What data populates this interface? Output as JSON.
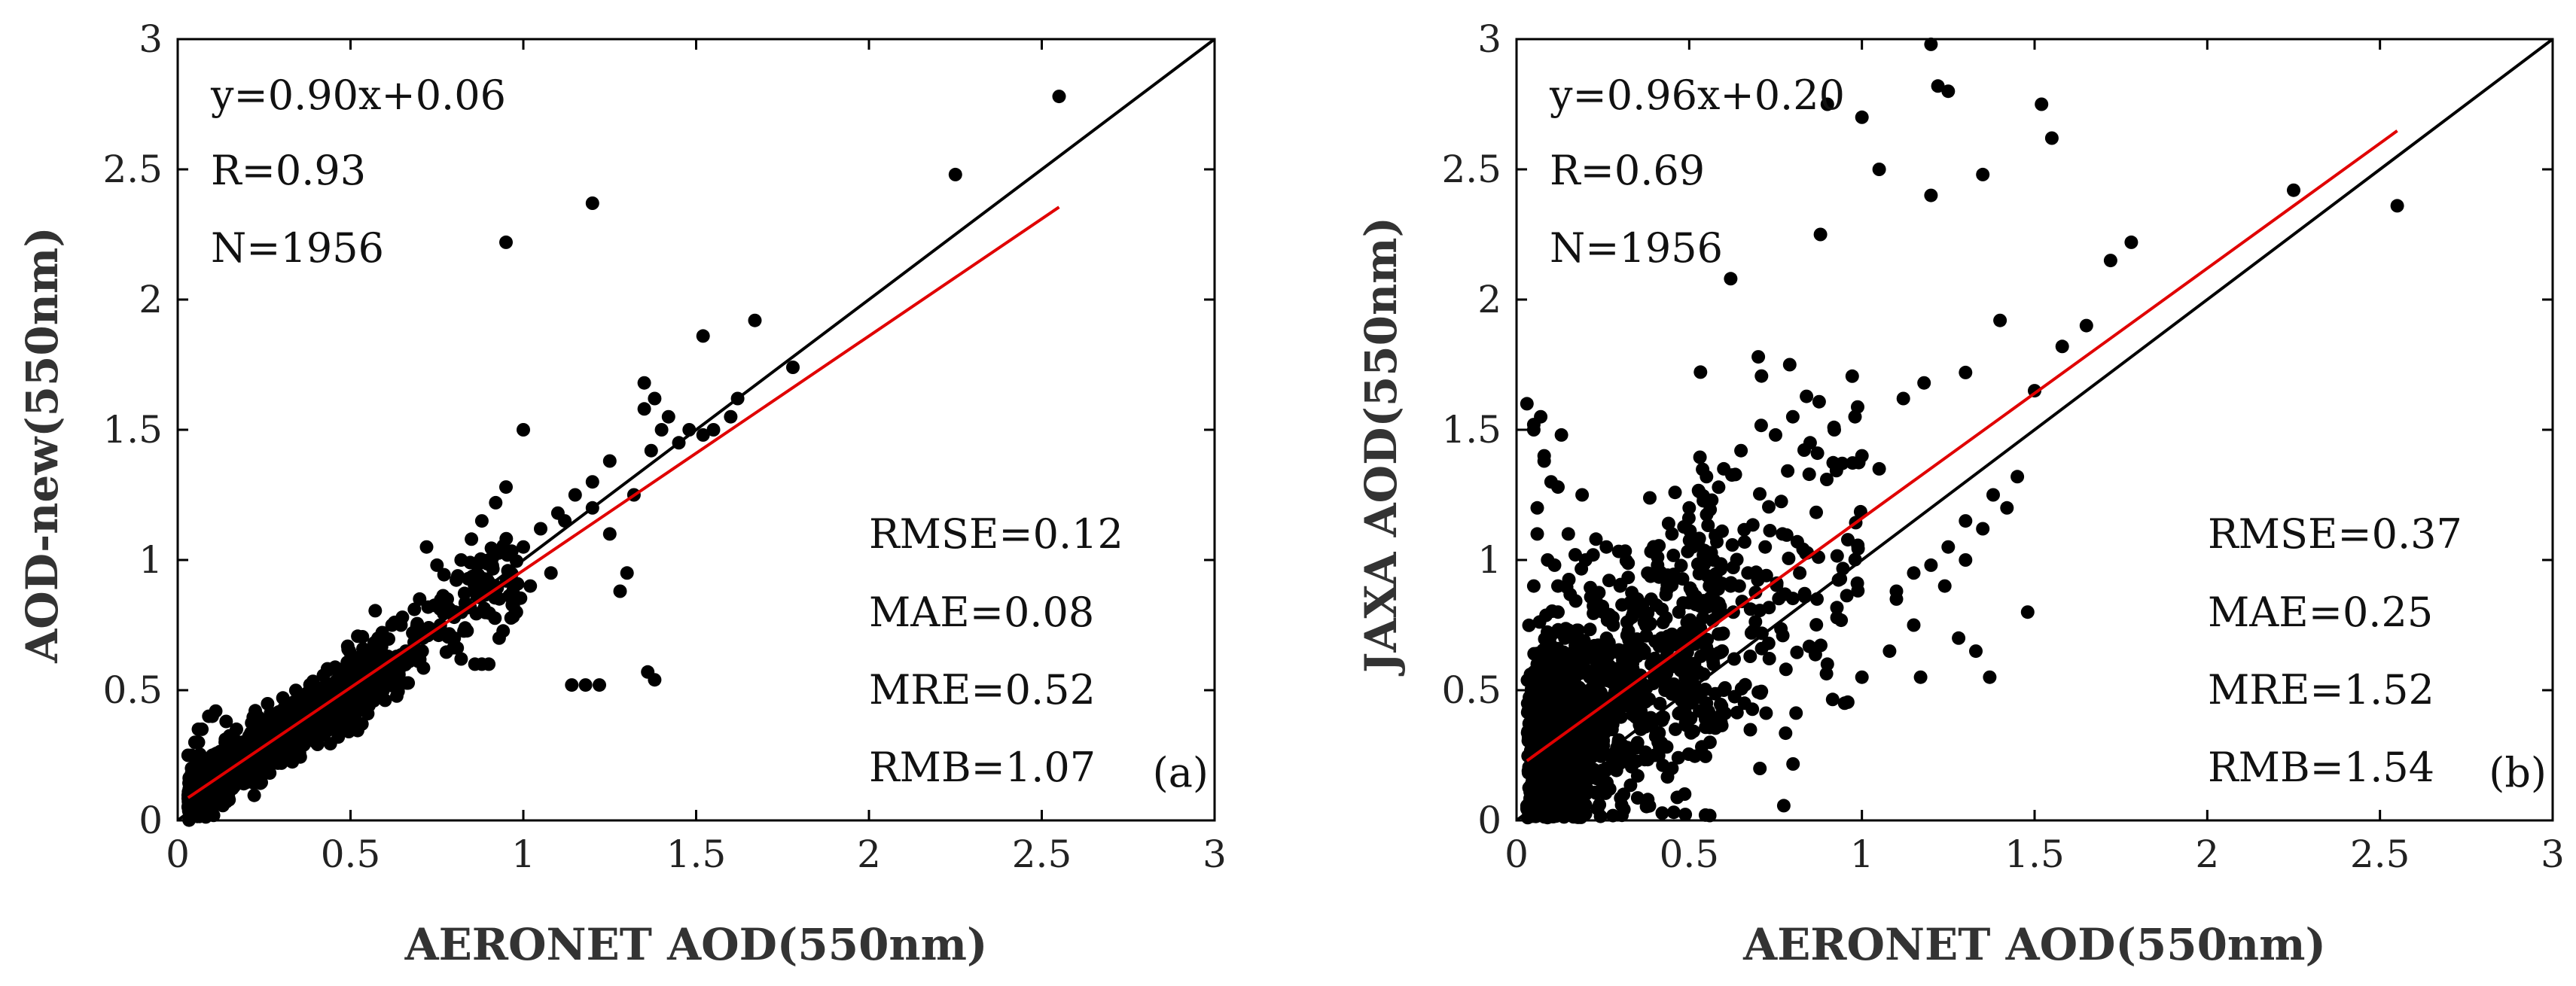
{
  "figure": {
    "panels": [
      "(a)",
      "(b)"
    ]
  },
  "chart_data": [
    {
      "type": "scatter",
      "panel_label": "(a)",
      "xlabel": "AERONET AOD(550nm)",
      "ylabel": "AOD-new(550nm)",
      "xlim": [
        0,
        3
      ],
      "ylim": [
        0,
        3
      ],
      "xticks": [
        "0",
        "0.5",
        "1",
        "1.5",
        "2",
        "2.5",
        "3"
      ],
      "yticks": [
        "0",
        "0.5",
        "1",
        "1.5",
        "2",
        "2.5",
        "3"
      ],
      "grid": false,
      "stats_top": [
        "y=0.90x+0.06",
        "R=0.93",
        "N=1956"
      ],
      "stats_bottom": [
        "RMSE=0.12",
        "MAE=0.08",
        "MRE=0.52",
        "RMB=1.07"
      ],
      "fit_line": {
        "slope": 0.9,
        "intercept": 0.06,
        "x_range": [
          0.03,
          2.55
        ],
        "color": "#e00000"
      },
      "one_to_one": {
        "x_range": [
          0,
          3
        ],
        "color": "#000000"
      },
      "point_color": "#000000",
      "points_x": [
        0.95,
        1.2,
        2.25,
        2.55,
        1.52,
        1.67,
        1.78,
        1.62,
        1.55,
        1.52,
        1.42,
        1.38,
        1.35,
        1.35,
        1.37,
        1.25,
        1.2,
        1.15,
        1.1,
        1.05,
        1.0,
        1.0,
        0.95,
        0.92,
        0.88,
        0.85,
        0.9,
        0.82,
        0.97,
        1.12,
        1.14,
        1.18,
        1.22,
        1.36,
        1.38,
        1.3,
        1.28,
        1.25,
        1.2,
        0.72,
        0.75,
        0.78,
        0.8,
        0.82,
        0.86,
        0.88,
        0.9,
        0.7,
        0.65,
        0.62,
        0.58,
        0.55,
        0.68,
        0.6,
        0.5,
        0.48,
        0.45,
        0.42,
        0.52,
        0.4,
        0.38,
        0.35,
        0.33,
        0.3,
        0.28,
        0.25,
        0.22,
        0.2,
        0.18,
        0.15,
        0.12,
        0.1,
        0.08,
        0.06,
        0.05,
        0.04,
        0.03,
        0.05,
        0.07,
        0.09,
        0.11,
        0.14,
        0.17,
        0.21,
        0.26,
        0.31,
        0.36,
        0.41,
        0.46,
        0.51,
        0.56,
        0.61,
        0.66,
        0.71,
        0.76,
        0.05,
        0.08,
        0.1,
        0.12,
        0.15,
        0.18,
        0.2,
        0.24,
        0.27,
        0.3,
        0.34,
        0.37,
        0.4,
        0.43,
        0.47,
        0.5,
        0.54,
        0.57,
        0.6,
        0.64,
        0.04,
        0.06,
        0.09,
        0.13,
        0.16,
        0.19,
        0.23,
        0.29,
        0.32,
        0.39,
        0.44,
        0.49,
        0.53,
        0.58,
        0.63,
        0.06,
        0.1,
        0.14,
        0.2,
        0.26,
        0.33,
        0.4,
        0.47,
        0.55,
        0.62,
        0.1,
        0.2,
        0.3,
        0.4,
        0.5,
        0.05,
        0.15,
        0.25,
        0.35,
        0.45,
        0.55,
        1.45,
        1.4,
        1.32,
        1.08,
        1.02,
        0.98,
        0.93,
        1.48,
        1.6
      ],
      "points_y": [
        2.22,
        2.37,
        2.48,
        2.78,
        1.86,
        1.92,
        1.74,
        1.62,
        1.5,
        1.48,
        1.55,
        1.62,
        1.68,
        1.58,
        1.42,
        1.38,
        1.3,
        1.25,
        1.18,
        1.12,
        1.05,
        1.5,
        1.28,
        1.22,
        1.15,
        1.08,
        1.0,
        1.0,
        0.88,
        1.15,
        0.52,
        0.52,
        0.52,
        0.57,
        0.54,
        0.95,
        0.88,
        1.1,
        1.2,
        1.05,
        0.98,
        0.85,
        0.78,
        0.62,
        0.6,
        0.6,
        0.6,
        0.85,
        0.78,
        0.75,
        0.7,
        0.65,
        0.72,
        0.58,
        0.62,
        0.55,
        0.5,
        0.45,
        0.52,
        0.42,
        0.4,
        0.38,
        0.35,
        0.32,
        0.3,
        0.28,
        0.25,
        0.22,
        0.2,
        0.18,
        0.16,
        0.15,
        0.14,
        0.12,
        0.15,
        0.2,
        0.25,
        0.3,
        0.35,
        0.4,
        0.42,
        0.38,
        0.35,
        0.3,
        0.33,
        0.36,
        0.42,
        0.48,
        0.5,
        0.55,
        0.58,
        0.62,
        0.65,
        0.7,
        0.75,
        0.08,
        0.1,
        0.12,
        0.08,
        0.12,
        0.15,
        0.2,
        0.18,
        0.22,
        0.25,
        0.28,
        0.3,
        0.33,
        0.36,
        0.4,
        0.45,
        0.48,
        0.5,
        0.53,
        0.56,
        0.25,
        0.3,
        0.22,
        0.18,
        0.28,
        0.3,
        0.26,
        0.22,
        0.3,
        0.35,
        0.38,
        0.42,
        0.46,
        0.5,
        0.55,
        0.35,
        0.4,
        0.1,
        0.15,
        0.2,
        0.25,
        0.3,
        0.37,
        0.45,
        0.52,
        0.2,
        0.25,
        0.22,
        0.3,
        0.38,
        0.18,
        0.22,
        0.3,
        0.28,
        0.4,
        0.45,
        1.45,
        1.5,
        1.25,
        0.95,
        0.9,
        0.8,
        0.7,
        1.5,
        1.55
      ]
    },
    {
      "type": "scatter",
      "panel_label": "(b)",
      "xlabel": "AERONET AOD(550nm)",
      "ylabel": "JAXA AOD(550nm)",
      "xlim": [
        0,
        3
      ],
      "ylim": [
        0,
        3
      ],
      "xticks": [
        "0",
        "0.5",
        "1",
        "1.5",
        "2",
        "2.5",
        "3"
      ],
      "yticks": [
        "0",
        "0.5",
        "1",
        "1.5",
        "2",
        "2.5",
        "3"
      ],
      "grid": false,
      "stats_top": [
        "y=0.96x+0.20",
        "R=0.69",
        "N=1956"
      ],
      "stats_bottom": [
        "RMSE=0.37",
        "MAE=0.25",
        "MRE=1.52",
        "RMB=1.54"
      ],
      "fit_line": {
        "slope": 0.96,
        "intercept": 0.2,
        "x_range": [
          0.03,
          2.55
        ],
        "color": "#e00000"
      },
      "one_to_one": {
        "x_range": [
          0,
          3
        ],
        "color": "#000000"
      },
      "point_color": "#000000",
      "points_x": [
        1.2,
        1.22,
        1.25,
        1.52,
        1.55,
        0.9,
        1.0,
        1.05,
        1.2,
        0.88,
        1.35,
        1.5,
        2.25,
        2.55,
        1.65,
        1.72,
        1.78,
        1.58,
        1.4,
        1.3,
        1.18,
        1.12,
        0.98,
        0.92,
        0.85,
        0.8,
        0.75,
        0.65,
        0.6,
        0.55,
        0.62,
        0.7,
        1.0,
        1.05,
        1.1,
        1.15,
        1.28,
        1.33,
        1.37,
        1.3,
        1.24,
        1.17,
        1.2,
        1.25,
        1.3,
        1.38,
        0.45,
        0.5,
        0.4,
        0.35,
        0.3,
        0.25,
        0.2,
        0.15,
        0.1,
        0.08,
        0.05,
        0.06,
        0.09,
        0.12,
        0.14,
        0.18,
        0.22,
        0.27,
        0.32,
        0.37,
        0.42,
        0.47,
        0.52,
        0.57,
        0.62,
        0.67,
        0.72,
        0.77,
        0.82,
        0.87,
        0.05,
        0.08,
        0.1,
        0.13,
        0.16,
        0.19,
        0.23,
        0.26,
        0.29,
        0.33,
        0.36,
        0.4,
        0.44,
        0.48,
        0.51,
        0.55,
        0.58,
        0.63,
        0.68,
        0.73,
        0.78,
        0.04,
        0.07,
        0.11,
        0.15,
        0.2,
        0.25,
        0.3,
        0.35,
        0.41,
        0.46,
        0.53,
        0.6,
        0.04,
        0.06,
        0.09,
        0.12,
        0.17,
        0.21,
        0.28,
        0.34,
        0.39,
        0.43,
        0.49,
        0.56,
        0.66,
        0.06,
        0.1,
        0.14,
        0.18,
        0.24,
        0.31,
        0.38,
        0.45,
        0.05,
        0.11,
        0.17,
        0.23,
        0.29,
        0.36,
        0.07,
        0.13,
        0.19,
        0.26,
        0.9,
        0.95,
        1.0,
        1.08,
        1.1,
        1.15,
        1.45,
        1.42,
        1.48,
        1.35,
        0.03,
        0.05,
        0.08,
        0.12,
        0.06,
        0.1
      ],
      "points_y": [
        2.98,
        2.82,
        2.8,
        2.75,
        2.62,
        2.75,
        2.7,
        2.5,
        2.4,
        2.25,
        2.48,
        1.65,
        2.42,
        2.36,
        1.9,
        2.15,
        2.22,
        1.82,
        1.92,
        1.72,
        1.68,
        1.62,
        1.55,
        1.5,
        1.45,
        1.55,
        1.48,
        1.42,
        1.35,
        1.32,
        2.08,
        1.78,
        1.4,
        1.35,
        0.85,
        0.75,
        0.7,
        0.65,
        0.55,
        1.0,
        0.9,
        0.55,
        0.98,
        1.05,
        1.15,
        1.25,
        1.1,
        1.2,
        0.95,
        0.85,
        0.9,
        0.8,
        1.0,
        1.1,
        1.3,
        1.4,
        1.5,
        1.2,
        1.0,
        0.9,
        0.7,
        0.6,
        0.5,
        0.4,
        0.55,
        0.65,
        0.7,
        0.8,
        0.75,
        0.85,
        0.9,
        0.95,
        1.05,
        1.1,
        0.95,
        0.85,
        0.3,
        0.2,
        0.1,
        0.15,
        0.25,
        0.35,
        0.3,
        0.2,
        0.4,
        0.45,
        0.35,
        0.25,
        0.5,
        0.6,
        0.55,
        0.45,
        0.38,
        0.62,
        0.72,
        0.68,
        0.58,
        0.05,
        0.08,
        0.12,
        0.18,
        0.1,
        0.15,
        0.22,
        0.28,
        0.3,
        0.35,
        0.42,
        0.5,
        0.45,
        0.6,
        0.7,
        0.8,
        0.55,
        0.65,
        0.75,
        0.85,
        0.6,
        0.5,
        0.4,
        0.3,
        0.45,
        0.02,
        0.03,
        0.05,
        0.02,
        0.06,
        0.1,
        0.08,
        0.2,
        0.9,
        0.98,
        1.02,
        1.08,
        0.55,
        0.42,
        1.55,
        1.48,
        1.25,
        1.05,
        0.6,
        0.45,
        0.55,
        0.65,
        0.88,
        0.95,
        1.32,
        1.2,
        0.8,
        1.12,
        1.6,
        1.52,
        1.38,
        1.28,
        1.1,
        0.02
      ]
    }
  ]
}
